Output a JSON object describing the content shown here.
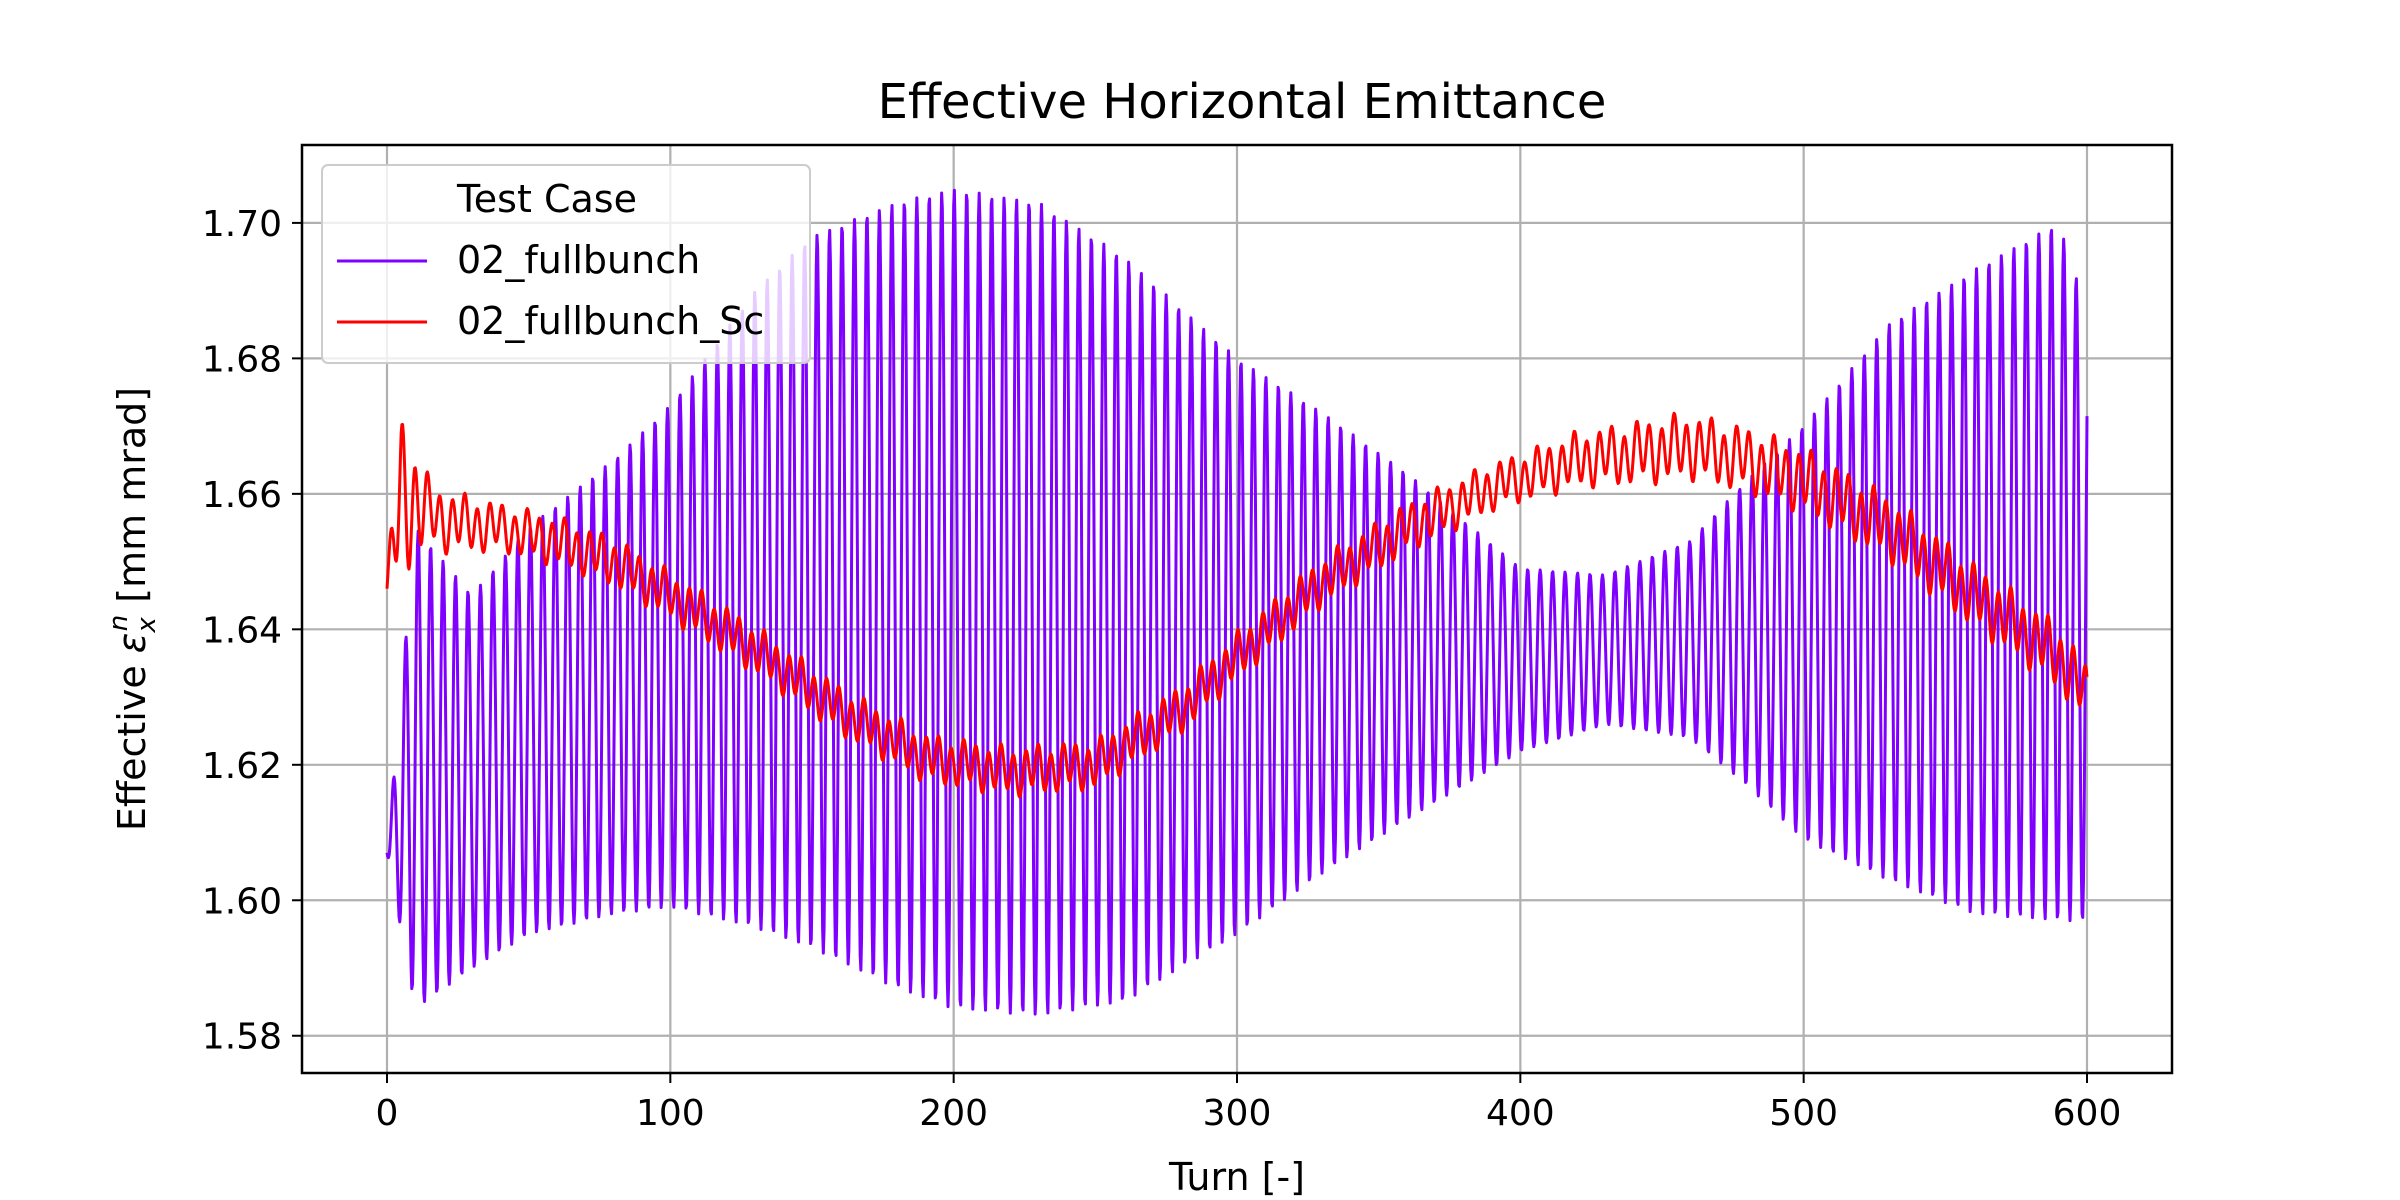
{
  "chart_data": {
    "type": "line",
    "title": "Effective Horizontal Emittance",
    "xlabel": "Turn [-]",
    "ylabel_prefix": "Effective ",
    "ylabel_symbol": "ε",
    "ylabel_sub": "x",
    "ylabel_sup": "n",
    "ylabel_suffix": " [mm mrad]",
    "xlim": [
      -30,
      630
    ],
    "ylim": [
      1.5745,
      1.7115
    ],
    "xticks": [
      0,
      100,
      200,
      300,
      400,
      500,
      600
    ],
    "xtick_labels": [
      "0",
      "100",
      "200",
      "300",
      "400",
      "500",
      "600"
    ],
    "yticks": [
      1.58,
      1.6,
      1.62,
      1.64,
      1.66,
      1.68,
      1.7
    ],
    "ytick_labels": [
      "1.58",
      "1.60",
      "1.62",
      "1.64",
      "1.66",
      "1.68",
      "1.70"
    ],
    "grid": true,
    "legend": {
      "title": "Test Case",
      "placement": "upper-left"
    },
    "series": [
      {
        "name": "02_fullbunch",
        "color": "#8000ff",
        "oscillation_period_turns": 4.4,
        "envelope": {
          "turns": [
            0,
            10,
            30,
            50,
            80,
            100,
            130,
            150,
            180,
            200,
            230,
            260,
            300,
            330,
            360,
            400,
            430,
            460,
            480,
            500,
            530,
            560,
            590,
            600
          ],
          "upper": [
            1.607,
            1.655,
            1.645,
            1.655,
            1.665,
            1.673,
            1.69,
            1.698,
            1.703,
            1.705,
            1.703,
            1.695,
            1.68,
            1.672,
            1.663,
            1.649,
            1.648,
            1.653,
            1.662,
            1.67,
            1.685,
            1.693,
            1.7,
            1.687
          ],
          "lower": [
            1.607,
            1.584,
            1.59,
            1.595,
            1.598,
            1.599,
            1.596,
            1.593,
            1.587,
            1.584,
            1.583,
            1.585,
            1.595,
            1.604,
            1.612,
            1.622,
            1.626,
            1.624,
            1.617,
            1.609,
            1.603,
            1.598,
            1.597,
            1.597
          ]
        }
      },
      {
        "name": "02_fullbunch_Sc",
        "color": "#ff0000",
        "oscillation_period_turns": 4.4,
        "mean": {
          "turns": [
            0,
            5,
            20,
            40,
            60,
            80,
            100,
            130,
            160,
            190,
            220,
            250,
            280,
            300,
            330,
            360,
            390,
            420,
            440,
            460,
            480,
            500,
            530,
            560,
            590,
            600
          ],
          "values": [
            1.646,
            1.66,
            1.656,
            1.655,
            1.653,
            1.65,
            1.645,
            1.637,
            1.628,
            1.621,
            1.619,
            1.62,
            1.628,
            1.636,
            1.647,
            1.655,
            1.661,
            1.665,
            1.666,
            1.667,
            1.665,
            1.662,
            1.655,
            1.645,
            1.636,
            1.63
          ]
        },
        "amplitude": {
          "turns": [
            0,
            5,
            15,
            40,
            100,
            200,
            300,
            400,
            450,
            500,
            600
          ],
          "values": [
            0.002,
            0.01,
            0.004,
            0.003,
            0.003,
            0.003,
            0.003,
            0.003,
            0.004,
            0.004,
            0.004
          ]
        }
      }
    ]
  }
}
